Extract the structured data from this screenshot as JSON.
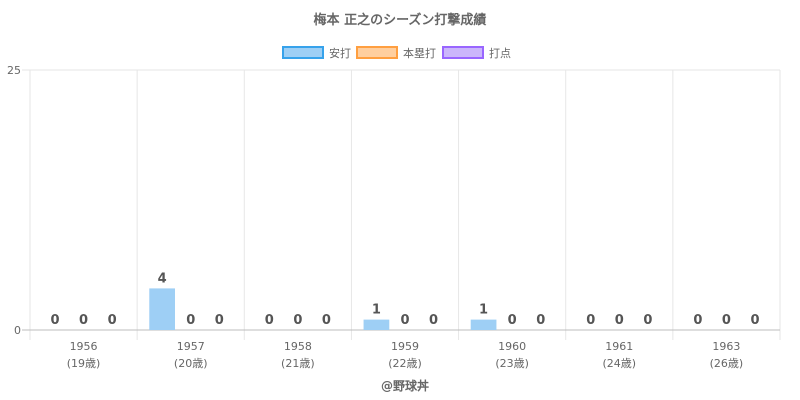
{
  "chart_data": {
    "type": "bar",
    "title": "梅本 正之のシーズン打撃成績",
    "categories": [
      "1956",
      "1957",
      "1958",
      "1959",
      "1960",
      "1961",
      "1963"
    ],
    "sublabels": [
      "(19歳)",
      "(20歳)",
      "(21歳)",
      "(22歳)",
      "(23歳)",
      "(24歳)",
      "(26歳)"
    ],
    "series": [
      {
        "name": "安打",
        "values": [
          0,
          4,
          0,
          1,
          1,
          0,
          0
        ],
        "fill": "#9ecff5",
        "stroke": "#36a2eb"
      },
      {
        "name": "本塁打",
        "values": [
          0,
          0,
          0,
          0,
          0,
          0,
          0
        ],
        "fill": "#ffcf9f",
        "stroke": "#ff9f40"
      },
      {
        "name": "打点",
        "values": [
          0,
          0,
          0,
          0,
          0,
          0,
          0
        ],
        "fill": "#cbb6fb",
        "stroke": "#9966ff"
      }
    ],
    "ylim": [
      0,
      25
    ],
    "yticks": [
      0,
      25
    ],
    "legend_position": "top",
    "grid": true,
    "credit": "@野球丼"
  }
}
